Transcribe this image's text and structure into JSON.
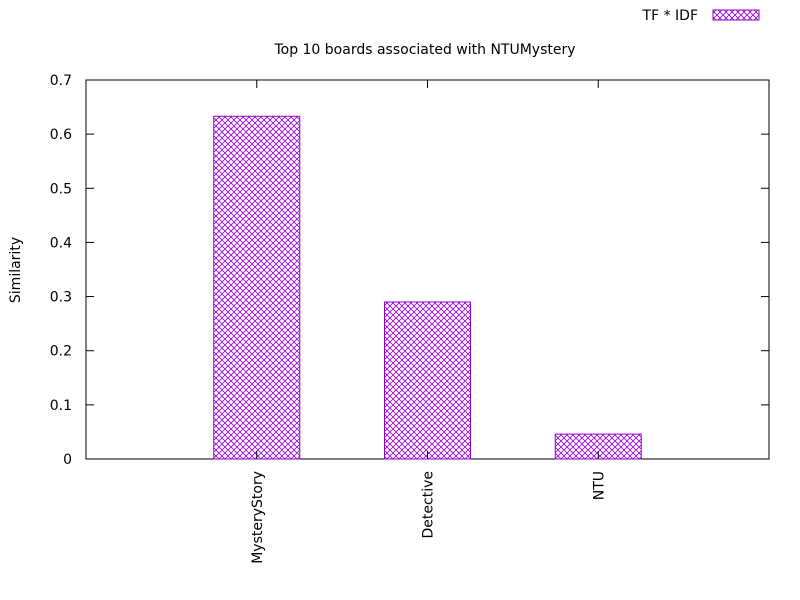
{
  "chart_data": {
    "type": "bar",
    "title": "Top 10 boards associated with NTUMystery",
    "ylabel": "Similarity",
    "xlabel": "",
    "categories": [
      "MysteryStory",
      "Detective",
      "NTU"
    ],
    "series": [
      {
        "name": "TF * IDF",
        "values": [
          0.633,
          0.29,
          0.046
        ]
      }
    ],
    "ylim": [
      0,
      0.7
    ],
    "yticks": [
      "0",
      "0.1",
      "0.2",
      "0.3",
      "0.4",
      "0.5",
      "0.6",
      "0.7"
    ],
    "grid": false,
    "legend": "top-right",
    "colors": {
      "bar": "#9400d3",
      "axis": "#000000"
    }
  }
}
